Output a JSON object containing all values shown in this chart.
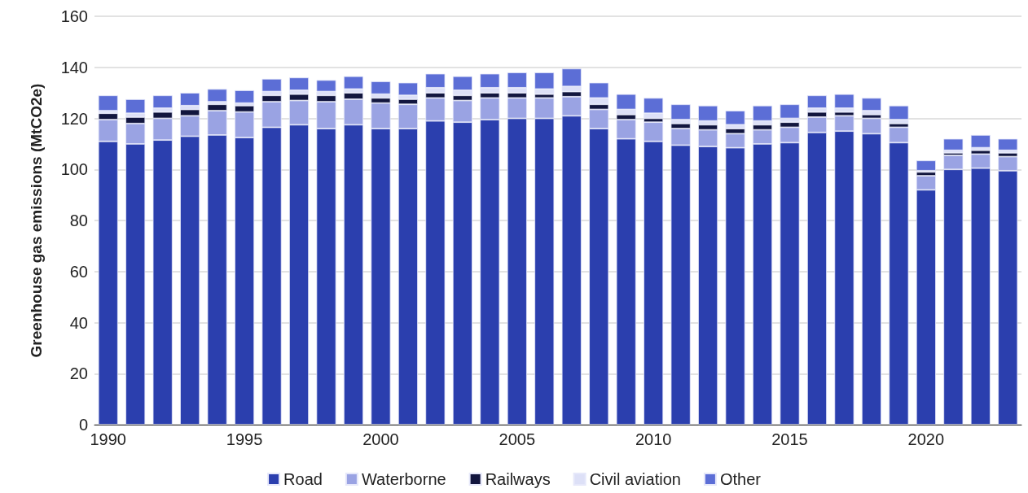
{
  "chart_data": {
    "type": "bar",
    "stacked": true,
    "ylabel": "Greenhouse gas emissions (MtCO2e)",
    "categories": [
      "1990",
      null,
      null,
      null,
      null,
      "1995",
      null,
      null,
      null,
      null,
      "2000",
      null,
      null,
      null,
      null,
      "2005",
      null,
      null,
      null,
      null,
      "2010",
      null,
      null,
      null,
      null,
      "2015",
      null,
      null,
      null,
      null,
      "2020",
      null,
      null,
      null
    ],
    "series": [
      {
        "name": "Road",
        "color": "#2b3fae",
        "values": [
          111,
          110,
          111.5,
          113,
          113.5,
          112.5,
          116.5,
          117.5,
          116,
          117.5,
          116,
          116,
          119,
          118.5,
          119.5,
          120,
          120,
          121,
          116,
          112,
          111,
          109.5,
          109,
          108.5,
          110,
          110.5,
          114.5,
          115,
          114,
          110.5,
          92,
          100,
          100.5,
          99.5
        ]
      },
      {
        "name": "Waterborne",
        "color": "#9aa3e3",
        "values": [
          8.5,
          8,
          8.5,
          8,
          9.5,
          10,
          10,
          9.5,
          10.5,
          10,
          10,
          9.5,
          9,
          8.5,
          8.5,
          8,
          8,
          7.5,
          7.5,
          7.5,
          7.5,
          6.5,
          6.5,
          5.5,
          5.5,
          6,
          6,
          6,
          6,
          6,
          5.5,
          5.5,
          5.5,
          5.5
        ]
      },
      {
        "name": "Railways",
        "color": "#12163e",
        "values": [
          2.5,
          2.5,
          2.5,
          2.5,
          2.5,
          2.5,
          2.5,
          2.5,
          2.5,
          2.5,
          2,
          2,
          2,
          2,
          2,
          2,
          1.5,
          2,
          2,
          2,
          1.5,
          2,
          2,
          2,
          2,
          2,
          2,
          1.5,
          1.5,
          1.5,
          1.5,
          1,
          1.5,
          1.5
        ]
      },
      {
        "name": "Civil aviation",
        "color": "#dde0f7",
        "values": [
          1,
          1.5,
          1.5,
          1.5,
          1,
          1,
          1.5,
          1.5,
          1.5,
          1.5,
          1.5,
          1.5,
          2,
          2,
          2,
          2,
          2,
          2,
          2.5,
          2,
          2,
          1.5,
          1.5,
          1.5,
          1.5,
          1.5,
          1.5,
          1.5,
          1.5,
          1.5,
          0.5,
          1,
          1,
          1
        ]
      },
      {
        "name": "Other",
        "color": "#5c6ed6",
        "values": [
          6,
          5.5,
          5,
          5,
          5,
          5,
          5,
          5,
          4.5,
          5,
          5,
          5,
          5.5,
          5.5,
          5.5,
          6,
          6.5,
          7,
          6,
          6,
          6,
          6,
          6,
          5.5,
          6,
          5.5,
          5,
          5.5,
          5,
          5.5,
          4,
          4.5,
          5,
          4.5
        ]
      }
    ],
    "ylim": [
      0,
      160
    ],
    "yticks": [
      0,
      20,
      40,
      60,
      80,
      100,
      120,
      140,
      160
    ],
    "grid": "y",
    "legend": "bottom"
  }
}
